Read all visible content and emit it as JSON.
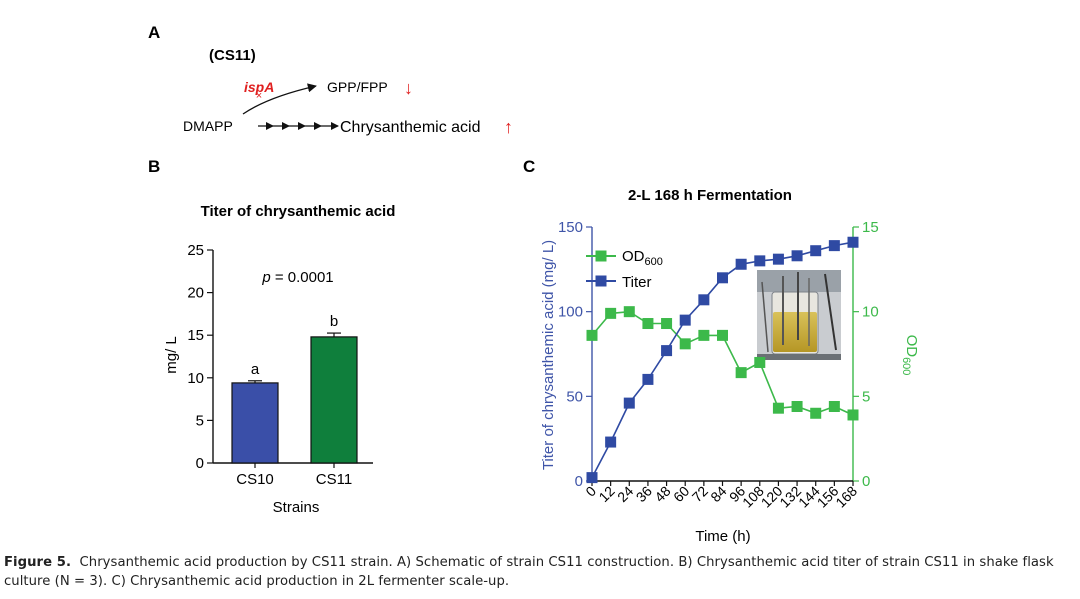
{
  "panelA": {
    "letter": "A",
    "strain": "(CS11)",
    "gene": "ispA",
    "knockout_mark": "×",
    "substrate": "DMAPP",
    "branch_product": "GPP/FPP",
    "main_product": "Chrysanthemic acid",
    "down_arrow": "↓",
    "up_arrow": "↑",
    "colors": {
      "red": "#e02020"
    }
  },
  "panelB": {
    "letter": "B",
    "pvalue_prefix": "p",
    "pvalue_rest": " = 0.0001"
  },
  "panelC": {
    "letter": "C",
    "legend_od_base": "OD",
    "legend_od_sub": "600",
    "right_axis_base": "OD",
    "right_axis_sub": "600"
  },
  "chart_data": [
    {
      "type": "bar",
      "title": "Titer of chrysanthemic acid",
      "xlabel": "Strains",
      "ylabel": "mg/ L",
      "categories": [
        "CS10",
        "CS11"
      ],
      "values": [
        9.4,
        14.8
      ],
      "errors": [
        0.25,
        0.45
      ],
      "significance_letters": [
        "a",
        "b"
      ],
      "colors": [
        "#3a4fa8",
        "#0f7f3c"
      ],
      "ylim": [
        0,
        25
      ],
      "yticks": [
        0,
        5,
        10,
        15,
        20,
        25
      ]
    },
    {
      "type": "line",
      "title": "2-L 168 h Fermentation",
      "xlabel": "Time (h)",
      "ylabel": "Titer of chrysanthemic acid (mg/ L)",
      "y2label": "OD600",
      "x": [
        0,
        12,
        24,
        36,
        48,
        60,
        72,
        84,
        96,
        108,
        120,
        132,
        144,
        156,
        168
      ],
      "xticks": [
        "0",
        "12",
        "24",
        "36",
        "48",
        "60",
        "72",
        "84",
        "96",
        "108",
        "120",
        "132",
        "144",
        "156",
        "168"
      ],
      "ylim": [
        0,
        150
      ],
      "yticks": [
        0,
        50,
        100,
        150
      ],
      "y2lim": [
        0,
        15
      ],
      "y2ticks": [
        0,
        5,
        10,
        15
      ],
      "series": [
        {
          "name": "OD600",
          "axis": "right",
          "color": "#3cb94a",
          "values": [
            8.6,
            9.9,
            10.0,
            9.3,
            9.3,
            8.1,
            8.6,
            8.6,
            6.4,
            7.0,
            4.3,
            4.4,
            4.0,
            4.4,
            3.9
          ]
        },
        {
          "name": "Titer",
          "axis": "left",
          "color": "#2f4aa3",
          "values": [
            2,
            23,
            46,
            60,
            77,
            95,
            107,
            120,
            128,
            130,
            131,
            133,
            136,
            139,
            141
          ]
        }
      ],
      "axis_colors": {
        "left": "#3f55a8",
        "right": "#3cb94a"
      },
      "legend_position": "top-left",
      "inset": "photo of 2-L fermenter vessel"
    }
  ],
  "caption": {
    "label": "Figure 5.",
    "text": "Chrysanthemic acid production by CS11 strain. A) Schematic of strain CS11 construction. B) Chrysanthemic acid titer of strain CS11 in shake flask culture (N = 3). C) Chrysanthemic acid production in 2L fermenter scale-up."
  }
}
